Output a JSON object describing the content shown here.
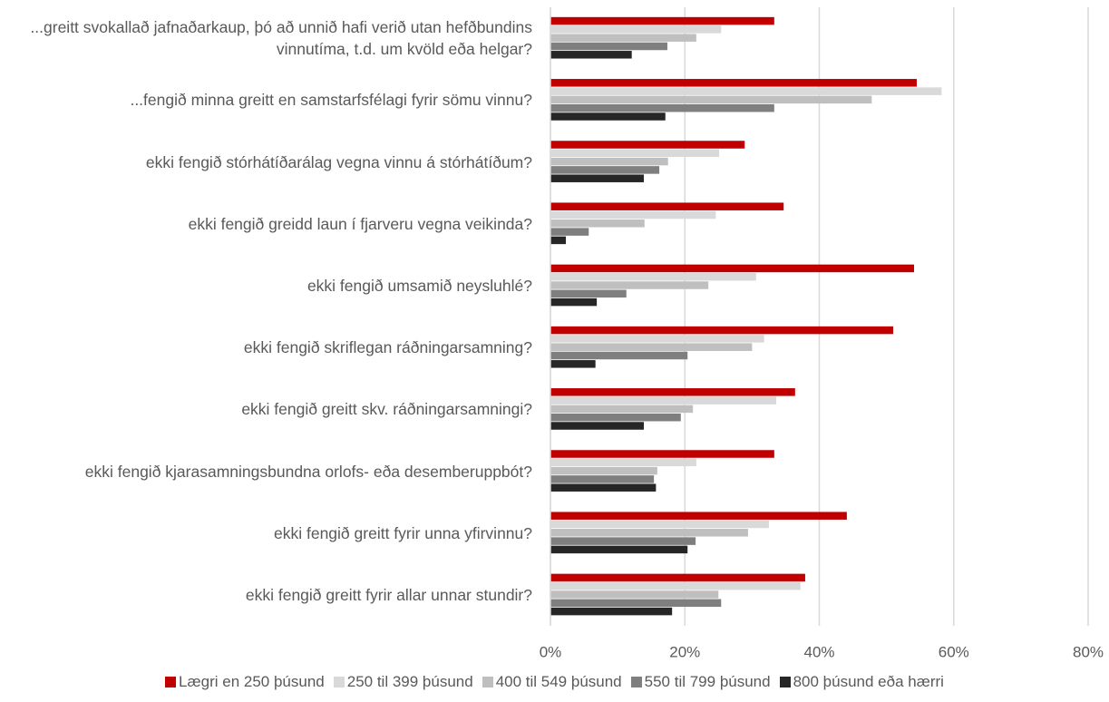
{
  "chart_data": {
    "type": "bar",
    "orientation": "horizontal",
    "categories": [
      "...greitt svokallað jafnaðarkaup, þó að unnið hafi verið utan hefðbundins vinnutíma, t.d. um kvöld eða helgar?",
      "...fengið minna greitt en samstarfsfélagi fyrir sömu vinnu?",
      "ekki fengið stórhátíðarálag vegna vinnu á stórhátíðum?",
      "ekki fengið greidd laun í fjarveru vegna veikinda?",
      "ekki fengið umsamið neysluhlé?",
      "ekki fengið skriflegan ráðningarsamning?",
      "ekki fengið greitt skv. ráðningarsamningi?",
      "ekki fengið kjarasamningsbundna orlofs- eða desemberuppbót?",
      "ekki fengið greitt fyrir unna yfirvinnu?",
      "ekki fengið greitt fyrir allar unnar stundir?"
    ],
    "series": [
      {
        "name": "Lægri en 250 þúsund",
        "color": "#c00000",
        "values": [
          33.3,
          54.5,
          28.9,
          34.7,
          54.1,
          51.0,
          36.4,
          33.3,
          44.1,
          37.9
        ]
      },
      {
        "name": "250 til 399 þúsund",
        "color": "#d9d9d9",
        "values": [
          25.4,
          58.2,
          25.1,
          24.6,
          30.6,
          31.8,
          33.6,
          21.7,
          32.5,
          37.2
        ]
      },
      {
        "name": "400 til 549 þúsund",
        "color": "#bfbfbf",
        "values": [
          21.7,
          47.8,
          17.5,
          14.0,
          23.5,
          30.0,
          21.2,
          15.9,
          29.4,
          25.0
        ]
      },
      {
        "name": "550 til 799 þúsund",
        "color": "#7f7f7f",
        "values": [
          17.4,
          33.3,
          16.2,
          5.7,
          11.3,
          20.4,
          19.4,
          15.4,
          21.6,
          25.4
        ]
      },
      {
        "name": "800 þúsund eða hærri",
        "color": "#262626",
        "values": [
          12.1,
          17.1,
          13.9,
          2.3,
          6.9,
          6.7,
          13.9,
          15.7,
          20.4,
          18.1
        ]
      }
    ],
    "xlim": [
      0,
      80
    ],
    "xticks": [
      {
        "value": 0,
        "label": "0%"
      },
      {
        "value": 20,
        "label": "20%"
      },
      {
        "value": 40,
        "label": "40%"
      },
      {
        "value": 60,
        "label": "60%"
      },
      {
        "value": 80,
        "label": "80%"
      }
    ],
    "grid": true,
    "legend": "bottom"
  }
}
